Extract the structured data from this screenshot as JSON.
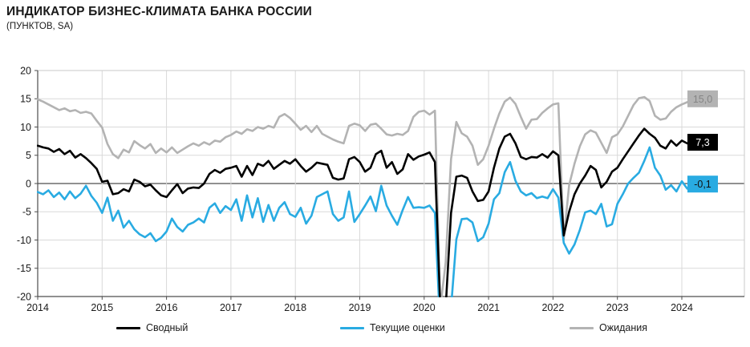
{
  "header": {
    "title": "ИНДИКАТОР БИЗНЕС-КЛИМАТА БАНКА РОССИИ",
    "subtitle": "(ПУНКТОВ, SA)"
  },
  "colors": {
    "composite": "#000000",
    "current": "#29abe2",
    "expectations": "#b3b3b3",
    "grid": "#d9d9d9",
    "zero_line": "#4d4d4d",
    "axis": "#4d4d4d",
    "border": "#c9c9c9",
    "text": "#1a1a1a"
  },
  "chart_data": {
    "type": "line",
    "title": "ИНДИКАТОР БИЗНЕС-КЛИМАТА БАНКА РОССИИ",
    "subtitle": "(ПУНКТОВ, SA)",
    "x_unit": "month",
    "x_start": "2014-01",
    "x_end": "2024-03",
    "x_tick_labels": [
      "2014",
      "2015",
      "2016",
      "2017",
      "2018",
      "2019",
      "2020",
      "2021",
      "2022",
      "2023",
      "2024"
    ],
    "y_ticks": [
      20,
      15,
      10,
      5,
      0,
      -5,
      -10,
      -15,
      -20
    ],
    "ylim": [
      -20,
      20
    ],
    "grid": true,
    "legend_position": "bottom",
    "series": [
      {
        "id": "composite",
        "name": "Сводный",
        "color": "#000000",
        "end_label": "7,3",
        "end_label_bg": "#000000",
        "end_label_fg": "#ffffff",
        "values": [
          6.7,
          6.4,
          6.2,
          5.6,
          6.1,
          5.2,
          5.8,
          4.6,
          5.2,
          4.5,
          3.6,
          2.6,
          0.3,
          0.5,
          -1.9,
          -1.7,
          -1.0,
          -1.4,
          0.7,
          0.3,
          -0.5,
          -0.2,
          -1.2,
          -2.1,
          -2.4,
          -1.2,
          -0.1,
          -1.7,
          -0.9,
          -0.7,
          -0.8,
          0.0,
          1.7,
          2.4,
          1.9,
          2.6,
          2.8,
          3.1,
          1.2,
          3.1,
          1.5,
          3.5,
          3.1,
          4.0,
          2.6,
          3.3,
          4.0,
          3.5,
          4.3,
          3.1,
          2.1,
          2.8,
          3.7,
          3.5,
          3.3,
          1.0,
          0.7,
          0.9,
          4.3,
          4.7,
          3.8,
          2.1,
          2.8,
          5.2,
          5.8,
          2.8,
          3.8,
          1.7,
          2.5,
          5.2,
          4.2,
          4.8,
          5.1,
          5.5,
          3.8,
          -22.0,
          -22.0,
          -5.2,
          1.2,
          1.4,
          1.0,
          -1.4,
          -3.1,
          -2.9,
          -1.4,
          2.8,
          6.2,
          8.3,
          8.8,
          7.1,
          4.7,
          4.3,
          4.7,
          4.6,
          5.2,
          4.6,
          5.7,
          5.0,
          -9.2,
          -5.0,
          -1.9,
          0.0,
          1.4,
          3.1,
          2.4,
          -0.7,
          0.3,
          2.1,
          2.8,
          4.3,
          5.7,
          7.1,
          8.5,
          9.7,
          8.8,
          8.1,
          6.7,
          6.2,
          7.6,
          6.7,
          7.6,
          7.1,
          7.3
        ]
      },
      {
        "id": "current",
        "name": "Текущие оценки",
        "color": "#29abe2",
        "end_label": "-0,1",
        "end_label_bg": "#29abe2",
        "end_label_fg": "#111111",
        "values": [
          -1.5,
          -1.9,
          -1.2,
          -2.4,
          -1.6,
          -2.8,
          -1.4,
          -2.6,
          -1.8,
          -0.4,
          -2.2,
          -3.4,
          -5.2,
          -2.5,
          -6.6,
          -4.8,
          -7.8,
          -6.6,
          -8.1,
          -9.0,
          -9.5,
          -8.8,
          -10.2,
          -9.6,
          -8.5,
          -6.2,
          -7.7,
          -8.5,
          -7.3,
          -6.9,
          -6.2,
          -6.9,
          -4.3,
          -3.5,
          -5.2,
          -4.0,
          -4.7,
          -2.8,
          -6.6,
          -2.1,
          -6.0,
          -2.6,
          -6.8,
          -3.8,
          -6.6,
          -4.3,
          -3.3,
          -5.4,
          -5.9,
          -4.3,
          -7.1,
          -5.7,
          -2.4,
          -1.9,
          -1.4,
          -5.4,
          -6.6,
          -6.0,
          -1.4,
          -6.8,
          -5.4,
          -3.9,
          -2.3,
          -4.9,
          -0.4,
          -3.9,
          -5.7,
          -7.3,
          -4.7,
          -2.4,
          -4.3,
          -4.2,
          -4.3,
          -3.9,
          -5.2,
          -26.0,
          -26.0,
          -22.0,
          -9.9,
          -6.3,
          -6.2,
          -6.9,
          -10.2,
          -9.5,
          -7.1,
          -2.8,
          -1.7,
          2.0,
          3.8,
          0.5,
          -1.4,
          -2.1,
          -1.7,
          -2.6,
          -2.3,
          -2.6,
          -1.0,
          -2.5,
          -10.5,
          -12.4,
          -10.8,
          -8.2,
          -5.1,
          -4.8,
          -5.4,
          -3.6,
          -7.6,
          -7.2,
          -3.6,
          -1.9,
          0.0,
          1.0,
          1.9,
          4.0,
          6.4,
          2.8,
          1.4,
          -1.1,
          -0.3,
          -1.4,
          0.4,
          -0.9,
          -0.1
        ]
      },
      {
        "id": "expectations",
        "name": "Ожидания",
        "color": "#b3b3b3",
        "end_label": "15,0",
        "end_label_bg": "#b3b3b3",
        "end_label_fg": "#858585",
        "values": [
          14.9,
          14.5,
          14.0,
          13.5,
          13.0,
          13.3,
          12.8,
          13.0,
          12.5,
          12.7,
          12.4,
          11.1,
          9.9,
          7.0,
          5.2,
          4.5,
          6.0,
          5.5,
          7.5,
          6.8,
          6.2,
          7.0,
          5.4,
          6.2,
          5.5,
          6.4,
          5.4,
          6.0,
          6.6,
          7.1,
          6.7,
          7.3,
          6.9,
          7.6,
          7.4,
          8.2,
          8.6,
          9.2,
          8.8,
          9.6,
          9.3,
          10.0,
          9.7,
          10.2,
          9.9,
          11.8,
          12.3,
          11.6,
          10.6,
          9.5,
          10.2,
          9.1,
          10.2,
          8.8,
          8.3,
          7.8,
          7.4,
          7.1,
          10.2,
          10.6,
          10.3,
          9.3,
          10.4,
          10.6,
          9.7,
          8.7,
          8.5,
          8.8,
          8.6,
          9.3,
          11.8,
          12.7,
          12.9,
          12.2,
          12.9,
          -22.0,
          -14.0,
          4.3,
          10.9,
          8.9,
          8.3,
          6.7,
          3.3,
          4.3,
          6.7,
          9.7,
          12.4,
          14.5,
          15.2,
          14.1,
          11.8,
          9.7,
          11.3,
          11.4,
          12.5,
          13.3,
          14.0,
          14.2,
          -9.9,
          -0.3,
          3.5,
          6.6,
          8.7,
          9.4,
          9.0,
          7.2,
          5.4,
          8.2,
          8.7,
          10.1,
          12.0,
          13.9,
          15.1,
          15.3,
          14.6,
          12.0,
          11.3,
          11.5,
          12.7,
          13.5,
          14.0,
          14.4,
          15.0
        ]
      }
    ]
  }
}
